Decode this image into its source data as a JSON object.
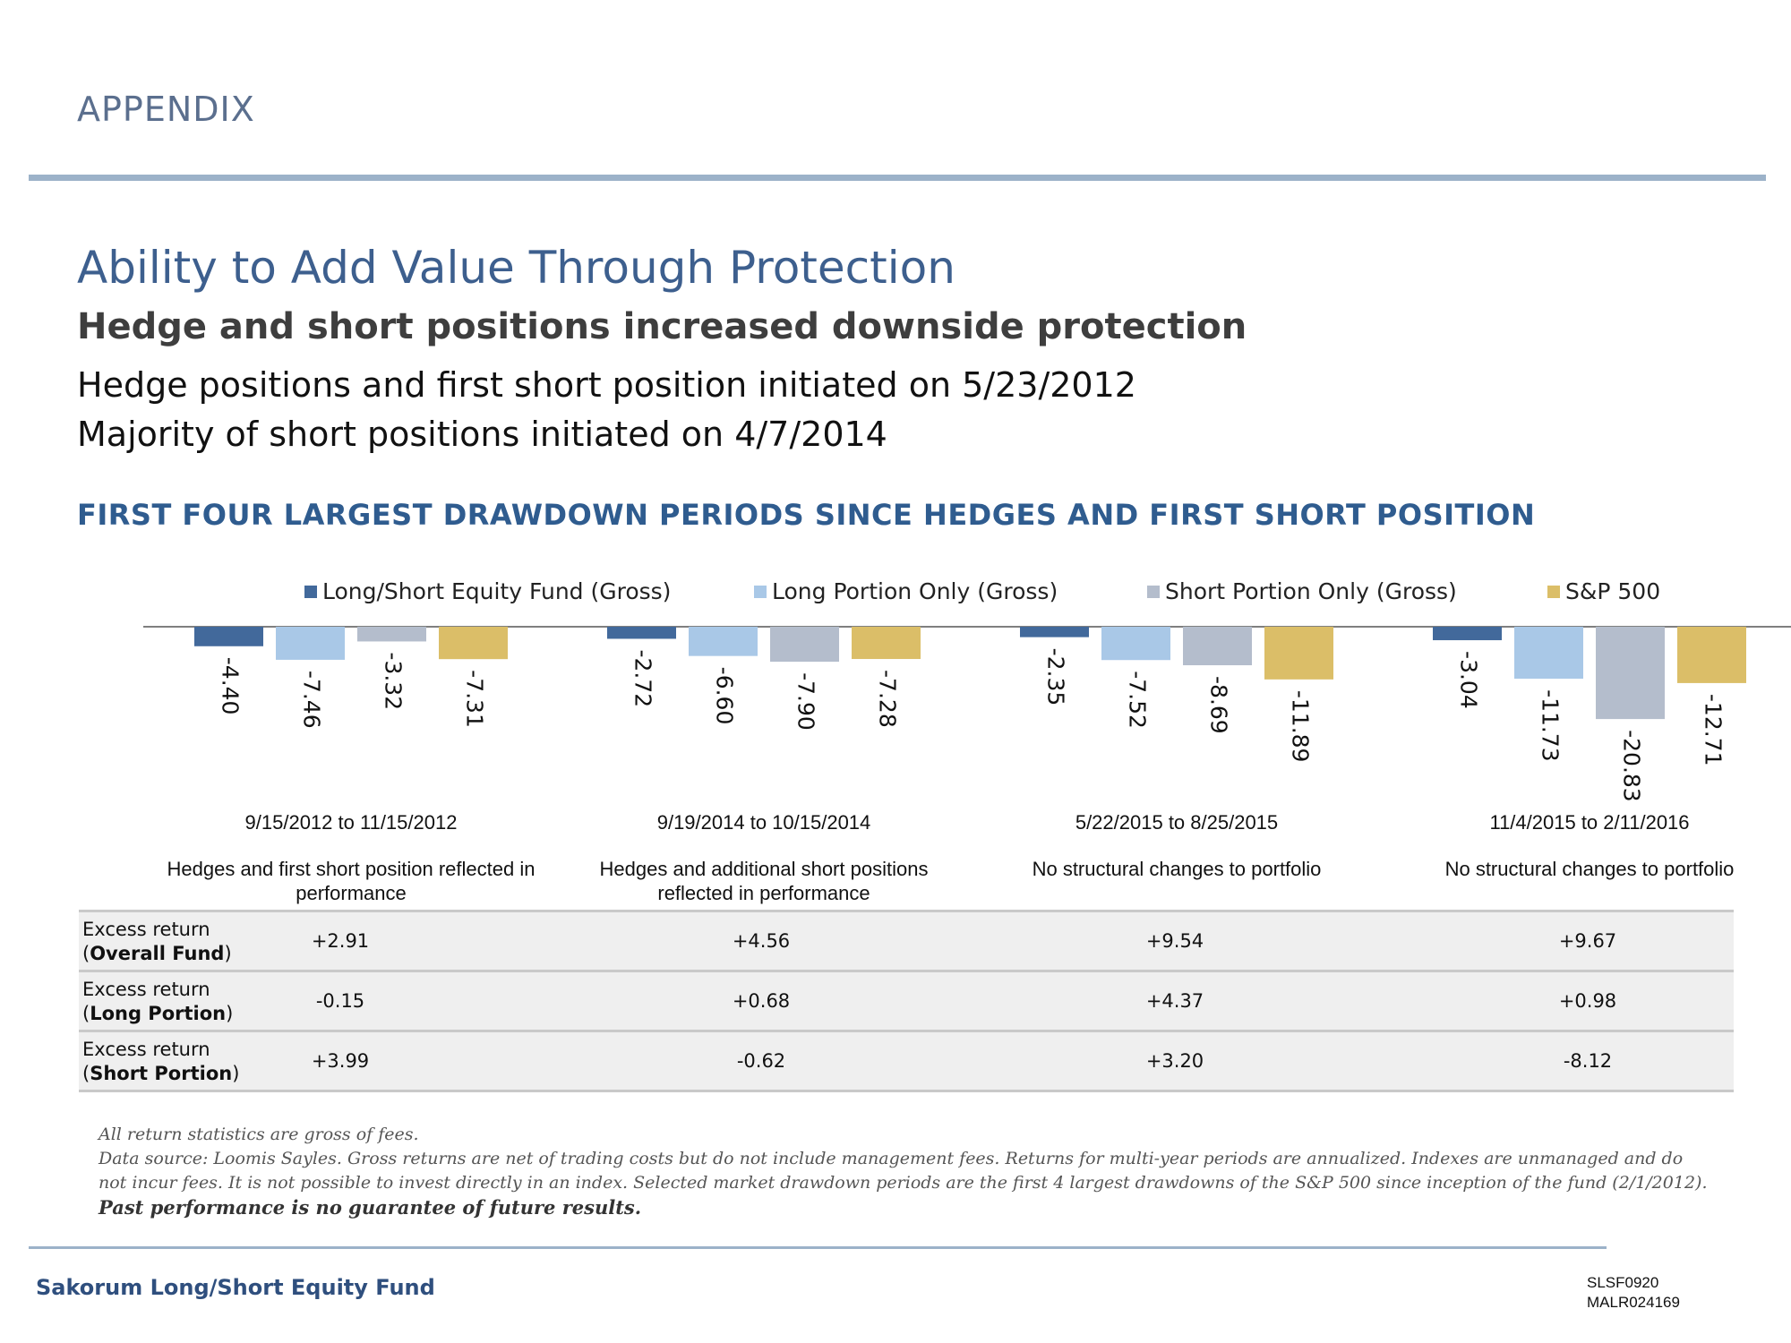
{
  "page": {
    "section": "APPENDIX",
    "title": "Ability to Add Value Through Protection",
    "subtitle": "Hedge and short positions increased downside protection",
    "bullets": [
      "Hedge positions and first short position initiated on 5/23/2012",
      "Majority of short positions initiated on 4/7/2014"
    ],
    "chart_heading": "FIRST FOUR LARGEST DRAWDOWN PERIODS SINCE HEDGES AND FIRST SHORT POSITION"
  },
  "chart_data": {
    "type": "bar",
    "title": "",
    "categories": [
      "9/15/2012 to 11/15/2012",
      "9/19/2014 to 10/15/2014",
      "5/22/2015 to 8/25/2015",
      "11/4/2015 to 2/11/2016"
    ],
    "category_notes": [
      "Hedges and first short position reflected in performance",
      "Hedges and additional short positions reflected in performance",
      "No structural changes to portfolio",
      "No structural changes to portfolio"
    ],
    "series": [
      {
        "name": "Long/Short Equity Fund (Gross)",
        "color": "#42699b",
        "values": [
          -4.4,
          -2.72,
          -2.35,
          -3.04
        ],
        "labels": [
          "-4.40",
          "-2.72",
          "-2.35",
          "-3.04"
        ]
      },
      {
        "name": "Long Portion Only (Gross)",
        "color": "#a9c8e7",
        "values": [
          -7.46,
          -6.6,
          -7.52,
          -11.73
        ],
        "labels": [
          "-7.46",
          "-6.60",
          "-7.52",
          "-11.73"
        ]
      },
      {
        "name": "Short Portion Only (Gross)",
        "color": "#b4bdcc",
        "values": [
          -3.32,
          -7.9,
          -8.69,
          -20.83
        ],
        "labels": [
          "-3.32",
          "-7.90",
          "-8.69",
          "-20.83"
        ]
      },
      {
        "name": "S&P 500",
        "color": "#dbbe68",
        "values": [
          -7.31,
          -7.28,
          -11.89,
          -12.71
        ],
        "labels": [
          "-7.31",
          "-7.28",
          "-11.89",
          "-12.71"
        ]
      }
    ],
    "legend_position": "top",
    "grid": false,
    "ylim": [
      -25,
      0
    ]
  },
  "table": {
    "rows": [
      {
        "label_prefix": "Excess return",
        "label_bold": "Overall Fund",
        "values": [
          "+2.91",
          "+4.56",
          "+9.54",
          "+9.67"
        ]
      },
      {
        "label_prefix": "Excess return",
        "label_bold": "Long Portion",
        "values": [
          "-0.15",
          "+0.68",
          "+4.37",
          "+0.98"
        ]
      },
      {
        "label_prefix": "Excess return",
        "label_bold": "Short Portion",
        "values": [
          "+3.99",
          "-0.62",
          "+3.20",
          "-8.12"
        ]
      }
    ]
  },
  "footnotes": {
    "line1": "All return statistics are gross of fees.",
    "line2": "Data source: Loomis Sayles. Gross returns are net of trading costs but do not include management fees. Returns for multi-year periods are annualized. Indexes are unmanaged and do not incur fees. It is not possible to invest directly in an index. Selected market drawdown periods are the first 4 largest drawdowns of the S&P 500 since inception of the fund (2/1/2012).",
    "line3": "Past performance is no guarantee of future results."
  },
  "footer": {
    "fund_name": "Sakorum Long/Short Equity Fund",
    "code1": "SLSF0920",
    "code2": "MALR024169"
  }
}
